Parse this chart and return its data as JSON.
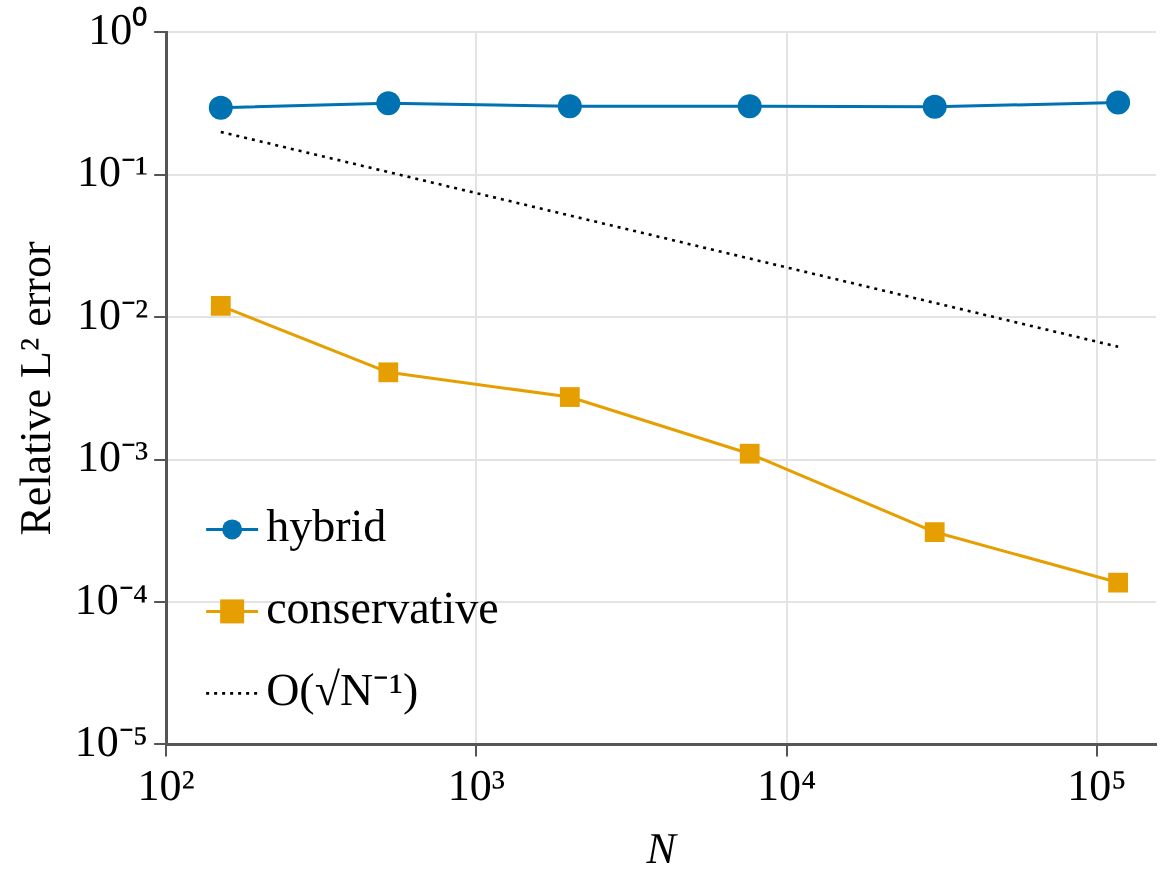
{
  "chart_data": {
    "type": "line",
    "xlabel": "N",
    "ylabel": "Relative L² error",
    "log": "xy",
    "grid": true,
    "legend": "bottom left",
    "xlim": [
      100,
      155000
    ],
    "ylim": [
      1e-05,
      1
    ],
    "xticks": [
      {
        "value": 100,
        "label": "10²"
      },
      {
        "value": 1000,
        "label": "10³"
      },
      {
        "value": 10000,
        "label": "10⁴"
      },
      {
        "value": 100000,
        "label": "10⁵"
      }
    ],
    "yticks": [
      {
        "value": 1e-05,
        "label": "10⁻⁵"
      },
      {
        "value": 0.0001,
        "label": "10⁻⁴"
      },
      {
        "value": 0.001,
        "label": "10⁻³"
      },
      {
        "value": 0.01,
        "label": "10⁻²"
      },
      {
        "value": 0.1,
        "label": "10⁻¹"
      },
      {
        "value": 1,
        "label": "10⁰"
      }
    ],
    "x": [
      150,
      520,
      2000,
      7600,
      30000,
      117000
    ],
    "series": [
      {
        "name": "hybrid",
        "color": "#0072b2",
        "marker": "circle",
        "line_style": "solid",
        "values": [
          0.296,
          0.318,
          0.303,
          0.303,
          0.3,
          0.322
        ]
      },
      {
        "name": "conservative",
        "color": "#e69f00",
        "marker": "square",
        "line_style": "solid",
        "values": [
          0.012,
          0.0041,
          0.00275,
          0.0011,
          0.00031,
          0.000137
        ]
      },
      {
        "name": "O(√N⁻¹)",
        "color": "#000000",
        "marker": "none",
        "line_style": "dotted",
        "x": [
          150,
          117000
        ],
        "values": [
          0.2,
          0.0062
        ]
      }
    ]
  }
}
